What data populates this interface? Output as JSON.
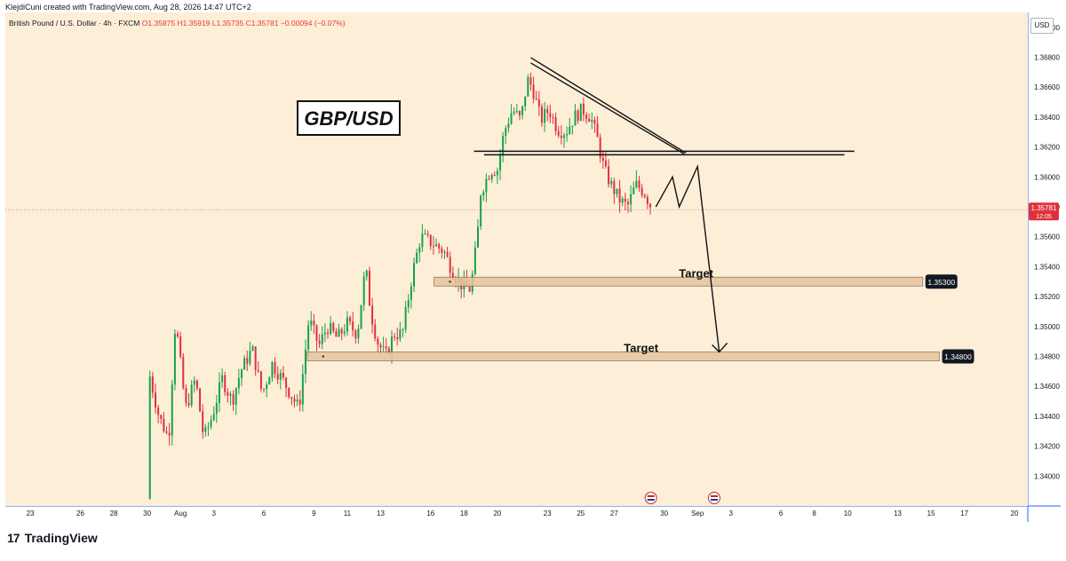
{
  "header": {
    "attribution": "KlejdiCuni created with TradingView.com, Aug 28, 2026 14:47 UTC+2"
  },
  "legend": {
    "symbol": "British Pound / U.S. Dollar · 4h · FXCM",
    "open": "O1.35875",
    "high": "H1.35919",
    "low": "L1.35735",
    "close": "C1.35781",
    "change": "−0.00094 (−0.07%)"
  },
  "currency_label": "USD",
  "footer_logo": {
    "mark": "17",
    "text": "TradingView"
  },
  "colors": {
    "background": "#fdeed8",
    "up": "#15a24a",
    "down": "#e0313b",
    "axis_line": "#2962ff"
  },
  "chart_data": {
    "type": "candlestick",
    "symbol": "GBP/USD",
    "timeframe": "4h",
    "ylim": [
      1.338,
      1.371
    ],
    "price_ticks": [
      "1.37000",
      "1.36800",
      "1.36600",
      "1.36400",
      "1.36200",
      "1.36000",
      "1.35800",
      "1.35600",
      "1.35400",
      "1.35200",
      "1.35000",
      "1.34800",
      "1.34600",
      "1.34400",
      "1.34200",
      "1.34000"
    ],
    "x_ticks": [
      {
        "day": -8,
        "label": "23"
      },
      {
        "day": -5,
        "label": "26"
      },
      {
        "day": -3,
        "label": "28"
      },
      {
        "day": -1,
        "label": "30"
      },
      {
        "day": 1,
        "label": "Aug"
      },
      {
        "day": 3,
        "label": "3"
      },
      {
        "day": 6,
        "label": "6"
      },
      {
        "day": 9,
        "label": "9"
      },
      {
        "day": 11,
        "label": "11"
      },
      {
        "day": 13,
        "label": "13"
      },
      {
        "day": 16,
        "label": "16"
      },
      {
        "day": 18,
        "label": "18"
      },
      {
        "day": 20,
        "label": "20"
      },
      {
        "day": 23,
        "label": "23"
      },
      {
        "day": 25,
        "label": "25"
      },
      {
        "day": 27,
        "label": "27"
      },
      {
        "day": 30,
        "label": "30"
      },
      {
        "day": 32,
        "label": "Sep"
      },
      {
        "day": 34,
        "label": "3"
      },
      {
        "day": 37,
        "label": "6"
      },
      {
        "day": 39,
        "label": "8"
      },
      {
        "day": 41,
        "label": "10"
      },
      {
        "day": 44,
        "label": "13"
      },
      {
        "day": 46,
        "label": "15"
      },
      {
        "day": 48,
        "label": "17"
      },
      {
        "day": 51,
        "label": "20"
      }
    ],
    "keypoints": [
      {
        "d": -1.0,
        "p": 1.3385
      },
      {
        "d": -0.9,
        "p": 1.347
      },
      {
        "d": -0.3,
        "p": 1.344
      },
      {
        "d": 0.3,
        "p": 1.3425
      },
      {
        "d": 0.7,
        "p": 1.3505
      },
      {
        "d": 1.3,
        "p": 1.3445
      },
      {
        "d": 1.9,
        "p": 1.3465
      },
      {
        "d": 2.4,
        "p": 1.3425
      },
      {
        "d": 2.9,
        "p": 1.344
      },
      {
        "d": 3.5,
        "p": 1.3465
      },
      {
        "d": 4.1,
        "p": 1.345
      },
      {
        "d": 4.6,
        "p": 1.347
      },
      {
        "d": 5.3,
        "p": 1.3485
      },
      {
        "d": 5.9,
        "p": 1.3455
      },
      {
        "d": 6.5,
        "p": 1.3475
      },
      {
        "d": 7.1,
        "p": 1.3465
      },
      {
        "d": 7.6,
        "p": 1.3455
      },
      {
        "d": 8.1,
        "p": 1.3445
      },
      {
        "d": 8.5,
        "p": 1.3485
      },
      {
        "d": 8.7,
        "p": 1.3505
      },
      {
        "d": 9.3,
        "p": 1.3487
      },
      {
        "d": 9.8,
        "p": 1.35
      },
      {
        "d": 10.4,
        "p": 1.3492
      },
      {
        "d": 11.0,
        "p": 1.3502
      },
      {
        "d": 11.6,
        "p": 1.3495
      },
      {
        "d": 12.1,
        "p": 1.354
      },
      {
        "d": 12.4,
        "p": 1.351
      },
      {
        "d": 12.8,
        "p": 1.349
      },
      {
        "d": 13.3,
        "p": 1.348
      },
      {
        "d": 13.8,
        "p": 1.3495
      },
      {
        "d": 14.3,
        "p": 1.3495
      },
      {
        "d": 14.9,
        "p": 1.3535
      },
      {
        "d": 15.4,
        "p": 1.356
      },
      {
        "d": 16.2,
        "p": 1.3555
      },
      {
        "d": 16.8,
        "p": 1.355
      },
      {
        "d": 17.4,
        "p": 1.3535
      },
      {
        "d": 17.9,
        "p": 1.3527
      },
      {
        "d": 18.4,
        "p": 1.3525
      },
      {
        "d": 18.8,
        "p": 1.356
      },
      {
        "d": 19.0,
        "p": 1.359
      },
      {
        "d": 19.6,
        "p": 1.3605
      },
      {
        "d": 20.0,
        "p": 1.3605
      },
      {
        "d": 20.4,
        "p": 1.363
      },
      {
        "d": 20.9,
        "p": 1.3645
      },
      {
        "d": 21.4,
        "p": 1.3638
      },
      {
        "d": 21.8,
        "p": 1.3665
      },
      {
        "d": 22.1,
        "p": 1.366
      },
      {
        "d": 22.6,
        "p": 1.3638
      },
      {
        "d": 23.1,
        "p": 1.3645
      },
      {
        "d": 23.6,
        "p": 1.3632
      },
      {
        "d": 24.1,
        "p": 1.363
      },
      {
        "d": 24.6,
        "p": 1.364
      },
      {
        "d": 25.1,
        "p": 1.3645
      },
      {
        "d": 25.6,
        "p": 1.364
      },
      {
        "d": 26.0,
        "p": 1.3625
      },
      {
        "d": 26.4,
        "p": 1.3605
      },
      {
        "d": 26.8,
        "p": 1.3595
      },
      {
        "d": 27.3,
        "p": 1.3585
      },
      {
        "d": 27.8,
        "p": 1.358
      },
      {
        "d": 28.3,
        "p": 1.3595
      },
      {
        "d": 28.8,
        "p": 1.359
      },
      {
        "d": 29.3,
        "p": 1.35781
      }
    ],
    "last_price": {
      "price": 1.35781,
      "label": "1.35781",
      "countdown": "12:05"
    },
    "annotations": {
      "title_box": "GBP/USD",
      "resistance": {
        "price": 1.3616
      },
      "descending_trendline": {
        "from": {
          "d": 22.0,
          "p": 1.3678
        },
        "to": {
          "d": 31.3,
          "p": 1.3616
        }
      },
      "projected_path": [
        {
          "d": 29.5,
          "p": 1.358
        },
        {
          "d": 30.5,
          "p": 1.36
        },
        {
          "d": 30.9,
          "p": 1.358
        },
        {
          "d": 32.0,
          "p": 1.3607
        },
        {
          "d": 33.3,
          "p": 1.3483
        }
      ],
      "targets": [
        {
          "label": "Target",
          "price": 1.353,
          "price_label": "1.35300",
          "from_day": 16.2,
          "to_day": 45.5
        },
        {
          "label": "Target",
          "price": 1.348,
          "price_label": "1.34800",
          "from_day": 8.6,
          "to_day": 46.5
        }
      ]
    },
    "event_markers": [
      {
        "day": 29.2,
        "icon": "us-flag-icon"
      },
      {
        "day": 33.0,
        "icon": "us-flag-icon"
      }
    ]
  }
}
